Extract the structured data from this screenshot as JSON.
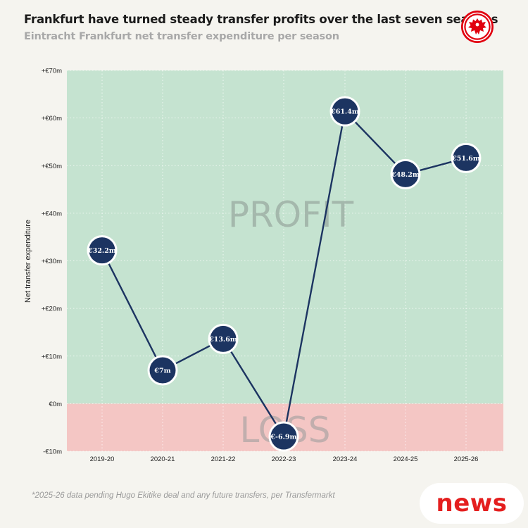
{
  "title": "Frankfurt have turned steady transfer profits over the last seven seasons",
  "subtitle": "Eintracht Frankfurt net transfer expenditure per season",
  "footnote": "*2025-26 data pending Hugo Ekitike deal and any future transfers, per Transfermarkt",
  "badge": "news",
  "logo": {
    "icon": "eagle-crest-icon",
    "color": "#e1000f"
  },
  "colors": {
    "profit_zone": "#c5e3d0",
    "loss_zone": "#f4c6c4",
    "line": "#1c3461",
    "marker": "#1c3461",
    "zone_text": "#9aaaa0",
    "background": "#f5f4ef"
  },
  "chart_data": {
    "type": "line",
    "title": "Frankfurt have turned steady transfer profits over the last seven seasons",
    "subtitle": "Eintracht Frankfurt net transfer expenditure per season",
    "xlabel": "",
    "ylabel": "Net transfer expenditure",
    "categories": [
      "2019-20",
      "2020-21",
      "2021-22",
      "2022-23",
      "2023-24",
      "2024-25",
      "2025-26"
    ],
    "values": [
      32.2,
      7,
      13.6,
      -6.9,
      61.4,
      48.2,
      51.6
    ],
    "data_labels": [
      "€32.2m",
      "€7m",
      "€13.6m",
      "€-6.9m",
      "€61.4m",
      "€48.2m",
      "€51.6m"
    ],
    "ylim": [
      -10,
      70
    ],
    "yticks": [
      -10,
      0,
      10,
      20,
      30,
      40,
      50,
      60,
      70
    ],
    "ytick_labels": [
      "-€10m",
      "€0m",
      "+€10m",
      "+€20m",
      "+€30m",
      "+€40m",
      "+€50m",
      "+€60m",
      "+€70m"
    ],
    "zones": {
      "profit_label": "PROFIT",
      "loss_label": "LOSS"
    },
    "grid": true
  }
}
